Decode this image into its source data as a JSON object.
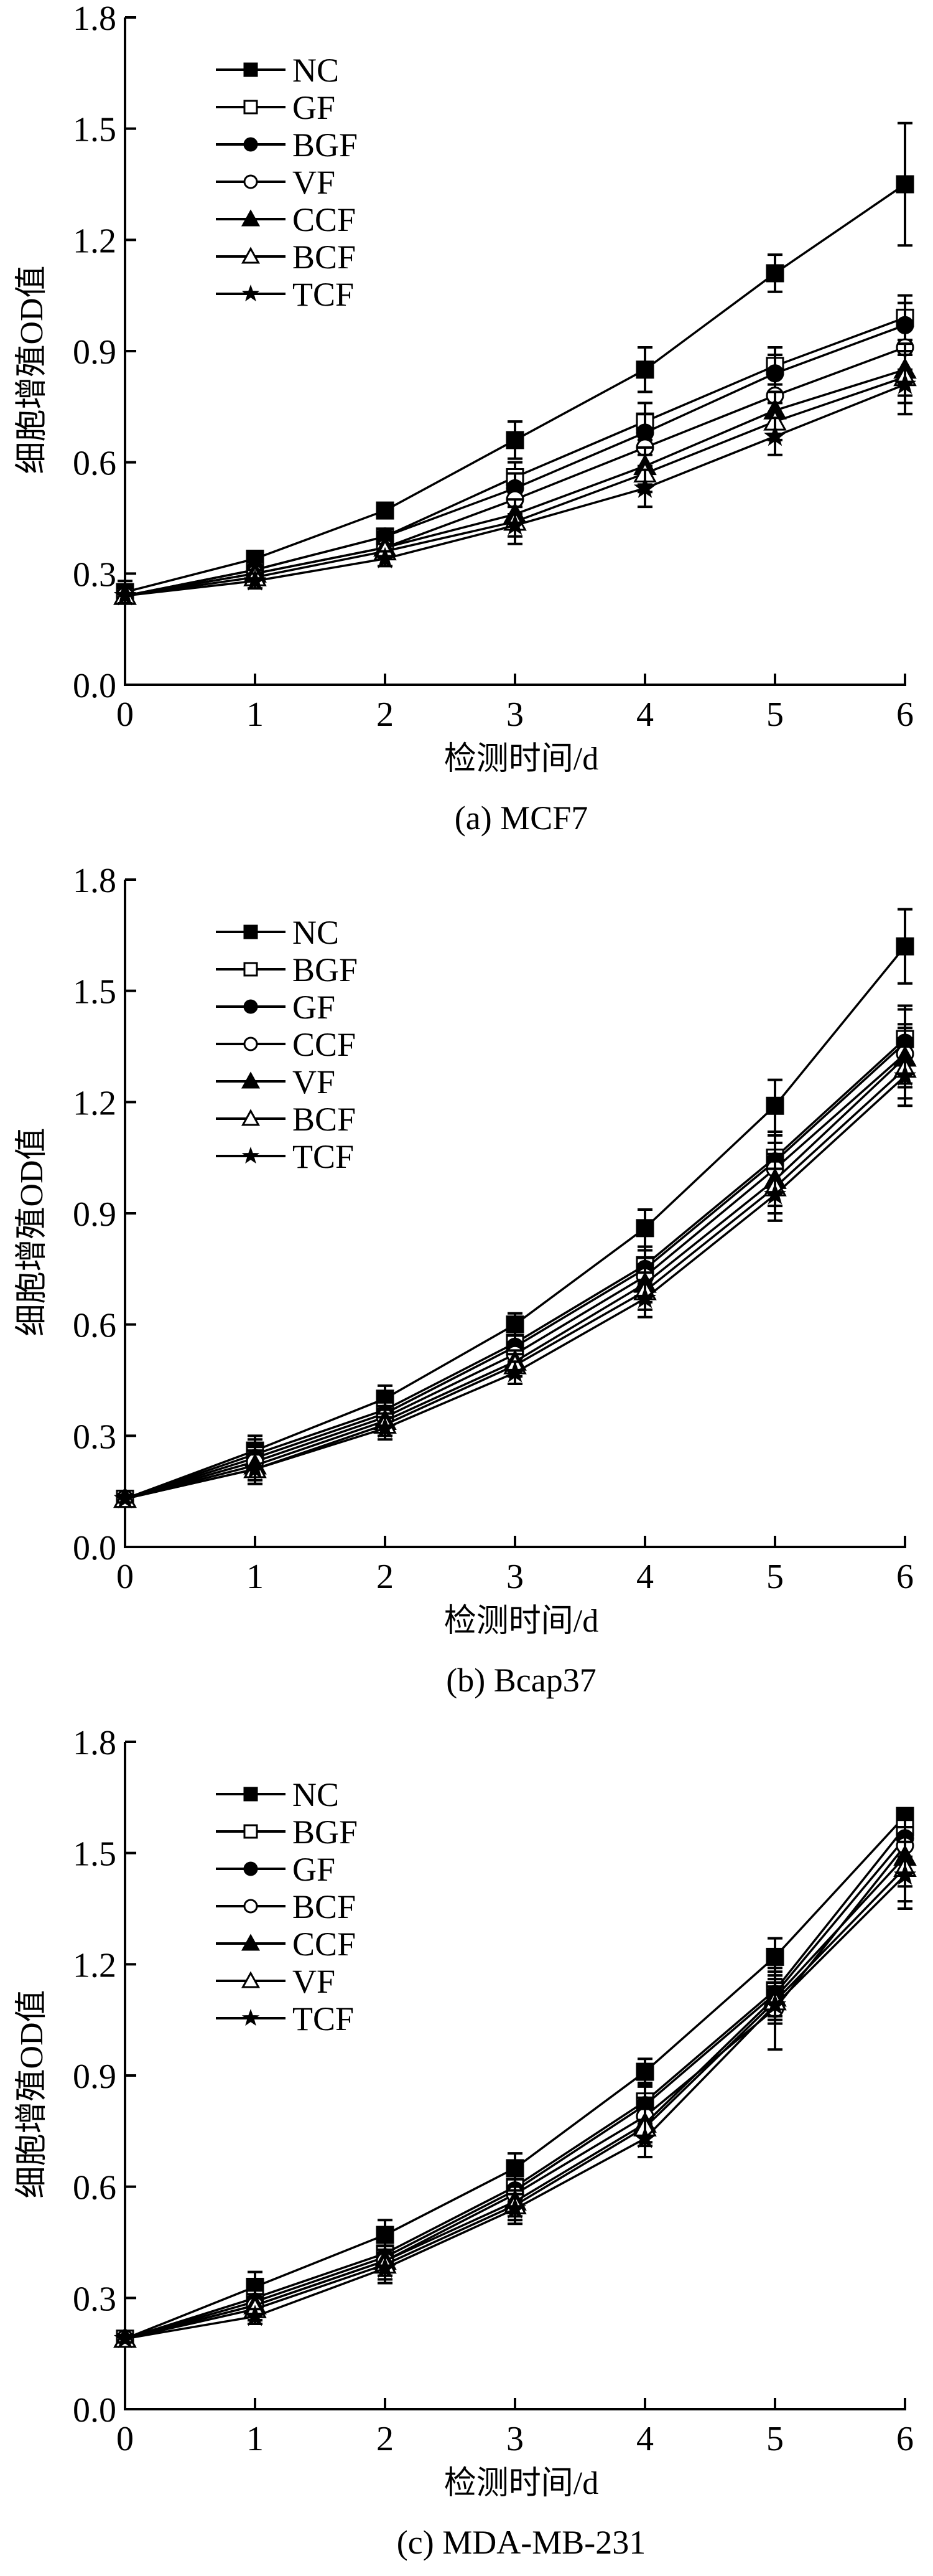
{
  "figure": {
    "y_axis_label": "细胞增殖OD值",
    "x_axis_label": "检测时间/d"
  },
  "chart_data": [
    {
      "type": "line",
      "panel": "a",
      "title": "(a) MCF7",
      "xlabel": "检测时间/d",
      "ylabel": "细胞增殖OD值",
      "x": [
        0,
        1,
        2,
        3,
        4,
        5,
        6
      ],
      "xticks": [
        "0",
        "1",
        "2",
        "3",
        "4",
        "5",
        "6"
      ],
      "yticks": [
        "0.0",
        "0.3",
        "0.6",
        "0.9",
        "1.2",
        "1.5",
        "1.8"
      ],
      "xlim": [
        0,
        6
      ],
      "ylim": [
        0,
        1.8
      ],
      "grid": false,
      "legend_position": "top-left",
      "series": [
        {
          "name": "NC",
          "marker": "square-filled",
          "values": [
            0.25,
            0.34,
            0.47,
            0.66,
            0.85,
            1.11,
            1.35
          ],
          "errors": [
            0.03,
            0.02,
            0.01,
            0.05,
            0.06,
            0.05,
            0.165
          ]
        },
        {
          "name": "GF",
          "marker": "square-open",
          "values": [
            0.24,
            0.31,
            0.4,
            0.56,
            0.71,
            0.86,
            0.99
          ],
          "errors": [
            0.02,
            0.02,
            0.02,
            0.04,
            0.05,
            0.05,
            0.06
          ]
        },
        {
          "name": "BGF",
          "marker": "circle-filled",
          "values": [
            0.24,
            0.31,
            0.4,
            0.53,
            0.68,
            0.84,
            0.97
          ],
          "errors": [
            0.02,
            0.02,
            0.02,
            0.04,
            0.05,
            0.05,
            0.06
          ]
        },
        {
          "name": "VF",
          "marker": "circle-open",
          "values": [
            0.24,
            0.3,
            0.37,
            0.5,
            0.64,
            0.78,
            0.91
          ],
          "errors": [
            0.02,
            0.02,
            0.02,
            0.04,
            0.05,
            0.05,
            0.06
          ]
        },
        {
          "name": "CCF",
          "marker": "triangle-filled",
          "values": [
            0.24,
            0.3,
            0.37,
            0.46,
            0.59,
            0.74,
            0.85
          ],
          "errors": [
            0.02,
            0.02,
            0.02,
            0.04,
            0.05,
            0.05,
            0.07
          ]
        },
        {
          "name": "BCF",
          "marker": "triangle-open",
          "values": [
            0.24,
            0.29,
            0.36,
            0.44,
            0.57,
            0.71,
            0.83
          ],
          "errors": [
            0.02,
            0.02,
            0.02,
            0.04,
            0.05,
            0.05,
            0.07
          ]
        },
        {
          "name": "TCF",
          "marker": "star-filled",
          "values": [
            0.24,
            0.28,
            0.34,
            0.43,
            0.53,
            0.67,
            0.81
          ],
          "errors": [
            0.02,
            0.02,
            0.02,
            0.05,
            0.05,
            0.05,
            0.08
          ]
        }
      ]
    },
    {
      "type": "line",
      "panel": "b",
      "title": "(b) Bcap37",
      "xlabel": "检测时间/d",
      "ylabel": "细胞增殖OD值",
      "x": [
        0,
        1,
        2,
        3,
        4,
        5,
        6
      ],
      "xticks": [
        "0",
        "1",
        "2",
        "3",
        "4",
        "5",
        "6"
      ],
      "yticks": [
        "0.0",
        "0.3",
        "0.6",
        "0.9",
        "1.2",
        "1.5",
        "1.8"
      ],
      "xlim": [
        0,
        6
      ],
      "ylim": [
        0,
        1.8
      ],
      "grid": false,
      "legend_position": "top-left",
      "series": [
        {
          "name": "NC",
          "marker": "square-filled",
          "values": [
            0.13,
            0.26,
            0.4,
            0.6,
            0.86,
            1.19,
            1.62
          ],
          "errors": [
            0.01,
            0.04,
            0.035,
            0.03,
            0.05,
            0.07,
            0.1
          ]
        },
        {
          "name": "BGF",
          "marker": "square-open",
          "values": [
            0.13,
            0.25,
            0.37,
            0.55,
            0.76,
            1.05,
            1.37
          ],
          "errors": [
            0.01,
            0.04,
            0.03,
            0.03,
            0.05,
            0.07,
            0.09
          ]
        },
        {
          "name": "GF",
          "marker": "circle-filled",
          "values": [
            0.13,
            0.24,
            0.36,
            0.54,
            0.75,
            1.04,
            1.36
          ],
          "errors": [
            0.01,
            0.04,
            0.03,
            0.03,
            0.05,
            0.07,
            0.09
          ]
        },
        {
          "name": "CCF",
          "marker": "circle-open",
          "values": [
            0.13,
            0.23,
            0.35,
            0.52,
            0.73,
            1.02,
            1.33
          ],
          "errors": [
            0.01,
            0.04,
            0.03,
            0.03,
            0.05,
            0.07,
            0.08
          ]
        },
        {
          "name": "VF",
          "marker": "triangle-filled",
          "values": [
            0.13,
            0.22,
            0.34,
            0.5,
            0.71,
            0.99,
            1.32
          ],
          "errors": [
            0.01,
            0.04,
            0.03,
            0.03,
            0.05,
            0.07,
            0.08
          ]
        },
        {
          "name": "BCF",
          "marker": "triangle-open",
          "values": [
            0.13,
            0.21,
            0.33,
            0.49,
            0.69,
            0.97,
            1.29
          ],
          "errors": [
            0.01,
            0.04,
            0.03,
            0.03,
            0.05,
            0.07,
            0.08
          ]
        },
        {
          "name": "TCF",
          "marker": "star-filled",
          "values": [
            0.13,
            0.21,
            0.32,
            0.47,
            0.67,
            0.95,
            1.27
          ],
          "errors": [
            0.01,
            0.04,
            0.03,
            0.03,
            0.05,
            0.07,
            0.08
          ]
        }
      ]
    },
    {
      "type": "line",
      "panel": "c",
      "title": "(c) MDA-MB-231",
      "xlabel": "检测时间/d",
      "ylabel": "细胞增殖OD值",
      "x": [
        0,
        1,
        2,
        3,
        4,
        5,
        6
      ],
      "xticks": [
        "0",
        "1",
        "2",
        "3",
        "4",
        "5",
        "6"
      ],
      "yticks": [
        "0.0",
        "0.3",
        "0.6",
        "0.9",
        "1.2",
        "1.5",
        "1.8"
      ],
      "xlim": [
        0,
        6
      ],
      "ylim": [
        0,
        1.8
      ],
      "grid": false,
      "legend_position": "top-left",
      "series": [
        {
          "name": "NC",
          "marker": "square-filled",
          "values": [
            0.19,
            0.33,
            0.47,
            0.65,
            0.91,
            1.22,
            1.6
          ],
          "errors": [
            0.01,
            0.04,
            0.04,
            0.04,
            0.035,
            0.05,
            0.01
          ]
        },
        {
          "name": "BGF",
          "marker": "square-open",
          "values": [
            0.19,
            0.3,
            0.42,
            0.6,
            0.83,
            1.13,
            1.57
          ],
          "errors": [
            0.01,
            0.04,
            0.04,
            0.04,
            0.05,
            0.05,
            0.03
          ]
        },
        {
          "name": "GF",
          "marker": "circle-filled",
          "values": [
            0.19,
            0.29,
            0.41,
            0.59,
            0.82,
            1.12,
            1.54
          ],
          "errors": [
            0.01,
            0.04,
            0.04,
            0.04,
            0.05,
            0.05,
            0.05
          ]
        },
        {
          "name": "BCF",
          "marker": "circle-open",
          "values": [
            0.19,
            0.28,
            0.4,
            0.58,
            0.79,
            1.08,
            1.52
          ],
          "errors": [
            0.01,
            0.04,
            0.04,
            0.04,
            0.05,
            0.11,
            0.07
          ]
        },
        {
          "name": "CCF",
          "marker": "triangle-filled",
          "values": [
            0.19,
            0.28,
            0.4,
            0.56,
            0.77,
            1.11,
            1.49
          ],
          "errors": [
            0.01,
            0.03,
            0.04,
            0.04,
            0.05,
            0.05,
            0.08
          ]
        },
        {
          "name": "VF",
          "marker": "triangle-open",
          "values": [
            0.19,
            0.27,
            0.39,
            0.55,
            0.76,
            1.1,
            1.46
          ],
          "errors": [
            0.01,
            0.03,
            0.04,
            0.04,
            0.05,
            0.05,
            0.09
          ]
        },
        {
          "name": "TCF",
          "marker": "star-filled",
          "values": [
            0.19,
            0.25,
            0.38,
            0.54,
            0.73,
            1.09,
            1.44
          ],
          "errors": [
            0.01,
            0.02,
            0.04,
            0.04,
            0.05,
            0.05,
            0.09
          ]
        }
      ]
    }
  ]
}
